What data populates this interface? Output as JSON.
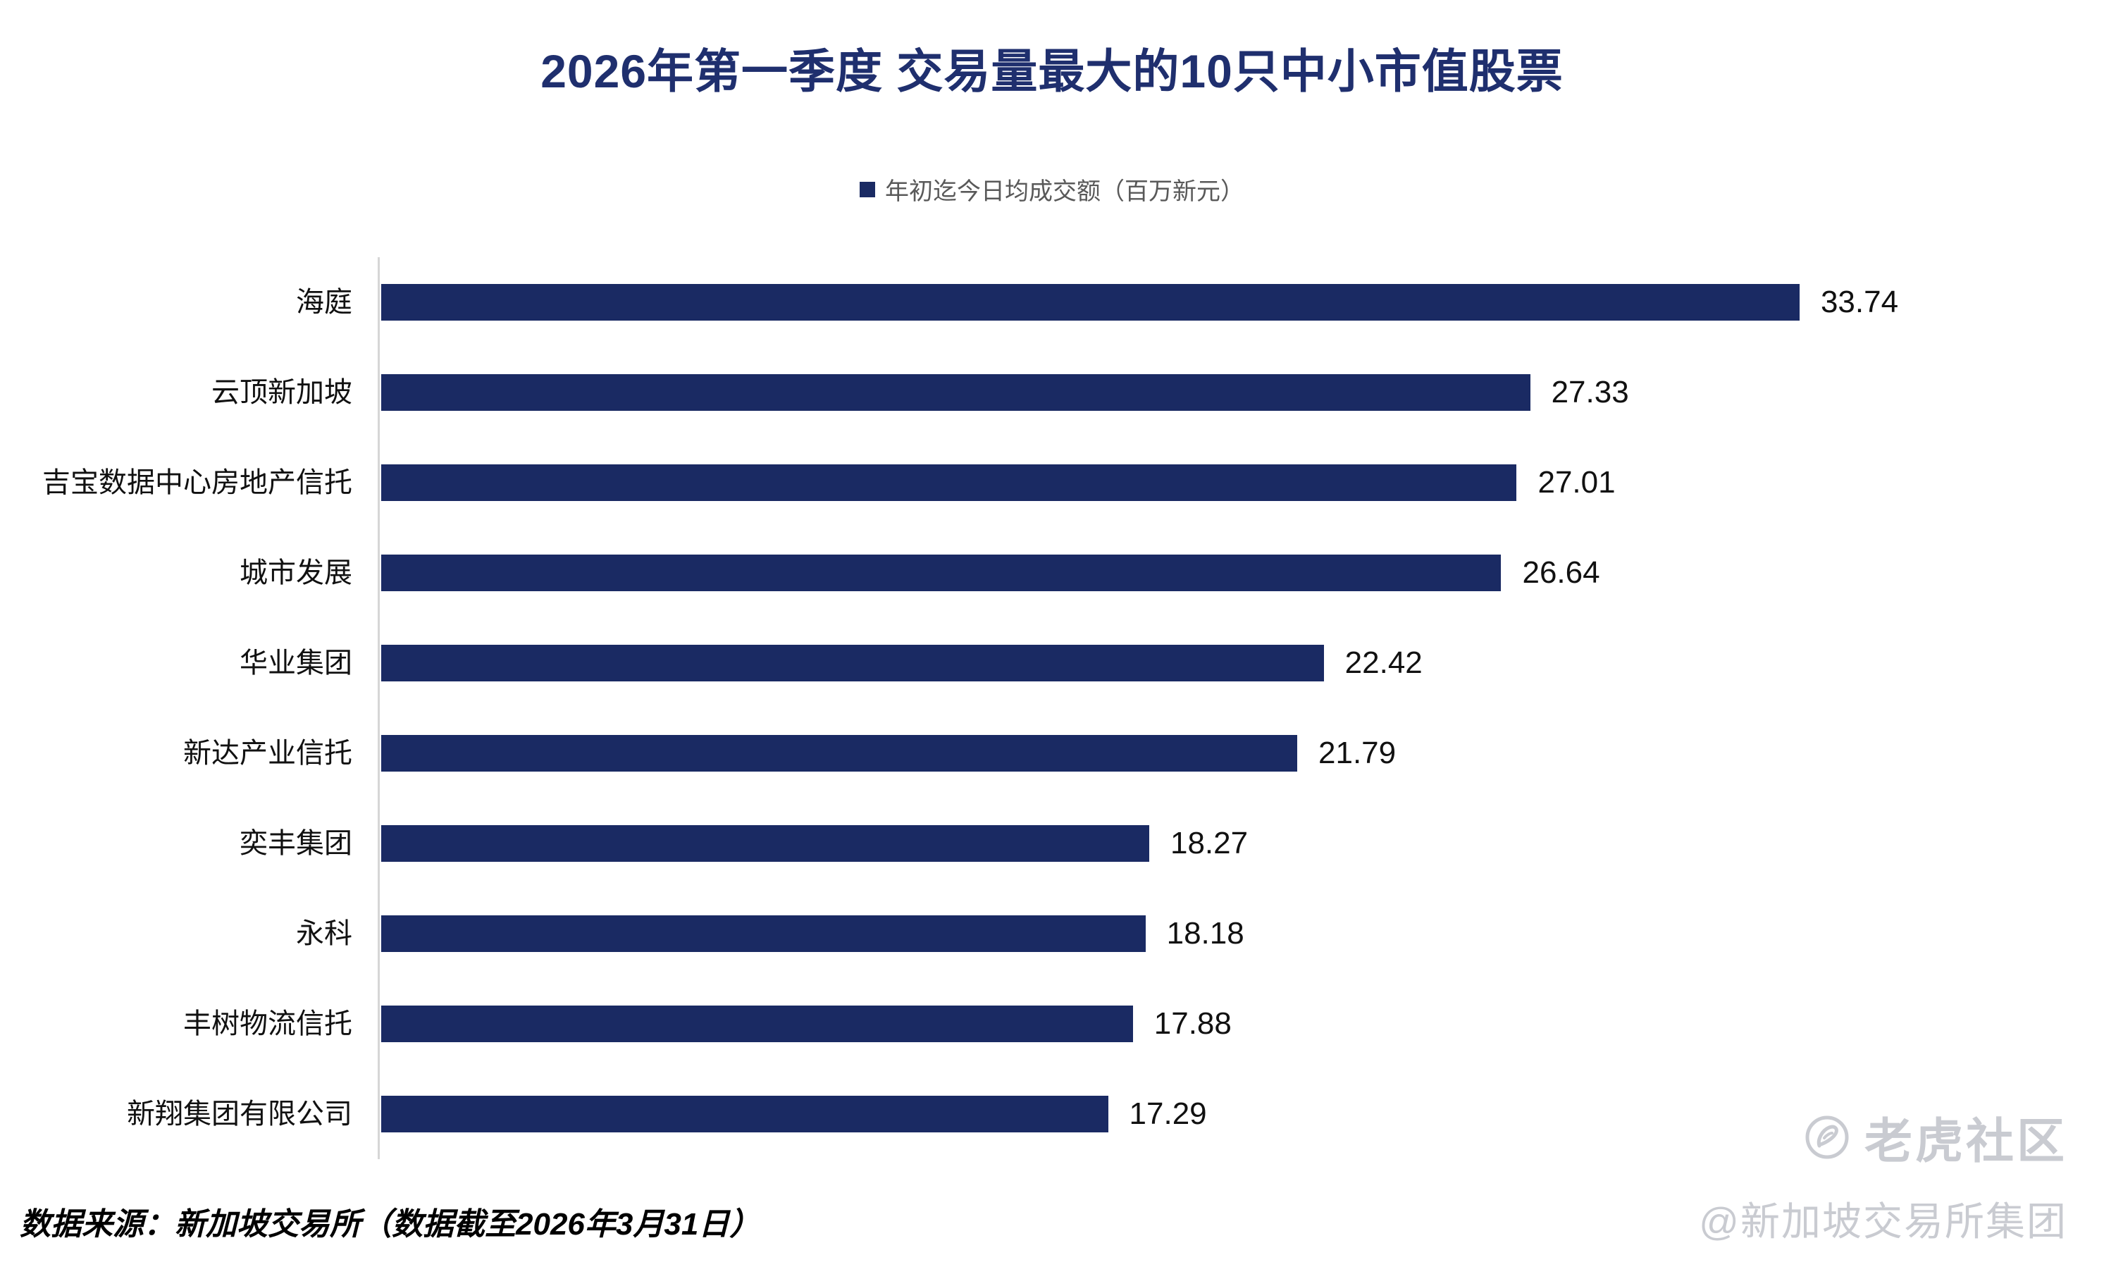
{
  "chart_data": {
    "type": "bar",
    "orientation": "horizontal",
    "title": "2026年第一季度 交易量最大的10只中小市值股票",
    "series_label": "年初迄今日均成交额（百万新元）",
    "categories": [
      "海庭",
      "云顶新加坡",
      "吉宝数据中心房地产信托",
      "城市发展",
      "华业集团",
      "新达产业信托",
      "奕丰集团",
      "永科",
      "丰树物流信托",
      "新翔集团有限公司"
    ],
    "values": [
      33.74,
      27.33,
      27.01,
      26.64,
      22.42,
      21.79,
      18.27,
      18.18,
      17.88,
      17.29
    ],
    "xlabel": "",
    "ylabel": "",
    "xlim": [
      0,
      35
    ],
    "grid": false,
    "x_axis_visible": false,
    "legend_position": "top",
    "value_labels": true
  },
  "source_note": "数据来源：新加坡交易所（数据截至2026年3月31日）",
  "watermark": {
    "brand": "老虎社区",
    "handle": "@新加坡交易所集团"
  },
  "colors": {
    "bar": "#1A2A63",
    "title": "#1F2F6E",
    "legend_text": "#595959",
    "axis_line": "#D6D6D6",
    "value_text": "#111111",
    "category_text": "#111111",
    "watermark": "#C9CBD1"
  }
}
